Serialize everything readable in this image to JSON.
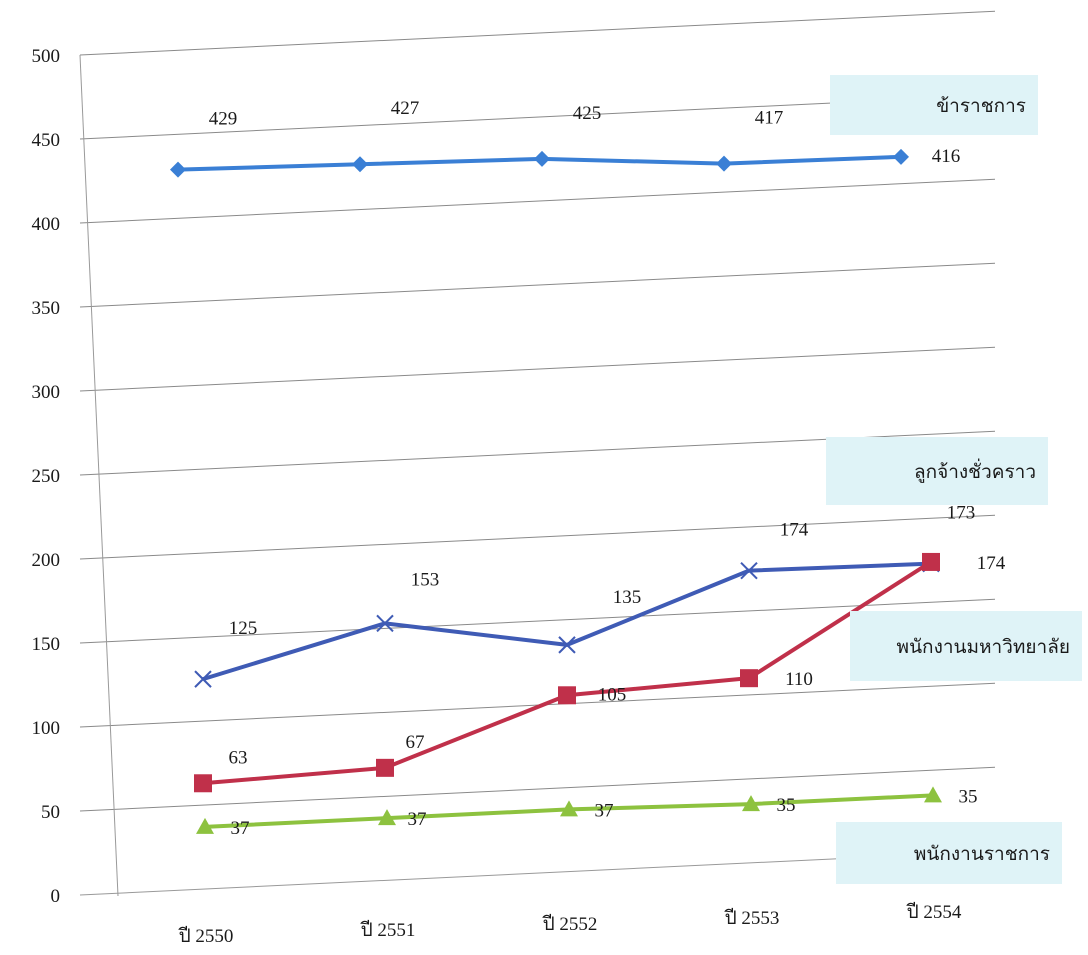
{
  "chart_data": {
    "type": "line",
    "categories": [
      "ปี 2550",
      "ปี 2551",
      "ปี 2552",
      "ปี 2553",
      "ปี 2554"
    ],
    "ylim": [
      0,
      500
    ],
    "yticks": [
      0,
      50,
      100,
      150,
      200,
      250,
      300,
      350,
      400,
      450,
      500
    ],
    "grid": true,
    "legend_placement": "right",
    "series": [
      {
        "name": "ข้าราชการ",
        "values": [
          429,
          427,
          425,
          417,
          416
        ],
        "color": "#3a7fd5",
        "marker": "diamond",
        "labels": [
          "429",
          "427",
          "425",
          "417",
          "416"
        ]
      },
      {
        "name": "ลูกจ้างชั่วคราว",
        "values": [
          125,
          153,
          135,
          174,
          173
        ],
        "color": "#3f5bb5",
        "marker": "x",
        "labels": [
          "125",
          "153",
          "135",
          "174",
          "173"
        ]
      },
      {
        "name": "พนักงานมหาวิทยาลัย",
        "values": [
          63,
          67,
          105,
          110,
          174
        ],
        "color": "#c0304a",
        "marker": "square",
        "labels": [
          "63",
          "67",
          "105",
          "110",
          "174"
        ]
      },
      {
        "name": "พนักงานราชการ",
        "values": [
          37,
          37,
          37,
          35,
          35
        ],
        "color": "#8dc23f",
        "marker": "triangle",
        "labels": [
          "37",
          "37",
          "37",
          "35",
          "35"
        ]
      }
    ]
  }
}
